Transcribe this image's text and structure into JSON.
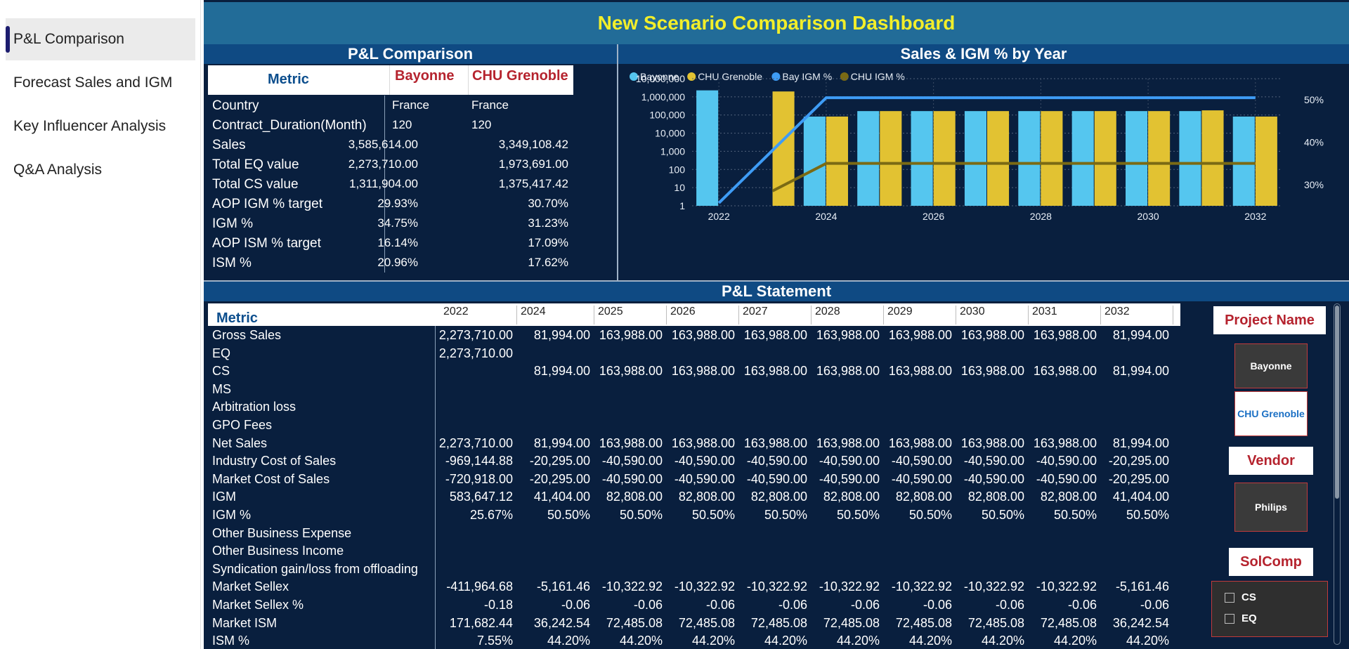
{
  "nav": {
    "items": [
      {
        "label": "P&L Comparison",
        "active": true
      },
      {
        "label": "Forecast Sales and IGM",
        "active": false
      },
      {
        "label": "Key Influencer Analysis",
        "active": false
      },
      {
        "label": "Q&A Analysis",
        "active": false
      }
    ]
  },
  "header": {
    "title": "New Scenario Comparison Dashboard"
  },
  "comparison": {
    "title": "P&L Comparison",
    "columns": [
      "Metric",
      "Bayonne",
      "CHU Grenoble"
    ],
    "rows": [
      {
        "metric": "Country",
        "a": "France",
        "b": "France"
      },
      {
        "metric": "Contract_Duration(Month)",
        "a": "120",
        "b": "120"
      },
      {
        "metric": "Sales",
        "a": "3,585,614.00",
        "b": "3,349,108.42"
      },
      {
        "metric": "Total EQ value",
        "a": "2,273,710.00",
        "b": "1,973,691.00"
      },
      {
        "metric": "Total CS value",
        "a": "1,311,904.00",
        "b": "1,375,417.42"
      },
      {
        "metric": "AOP IGM % target",
        "a": "29.93%",
        "b": "30.70%"
      },
      {
        "metric": "IGM %",
        "a": "34.75%",
        "b": "31.23%"
      },
      {
        "metric": "AOP ISM % target",
        "a": "16.14%",
        "b": "17.09%"
      },
      {
        "metric": "ISM %",
        "a": "20.96%",
        "b": "17.62%"
      }
    ]
  },
  "chart_data": {
    "type": "bar",
    "title": "Sales & IGM % by Year",
    "legend": [
      "Bayonne",
      "CHU Grenoble",
      "Bay IGM %",
      "CHU IGM %"
    ],
    "legend_position": "top-left",
    "colors": {
      "Bayonne": "#55c6ef",
      "CHU Grenoble": "#e2c232",
      "Bay IGM %": "#3e9cf5",
      "CHU IGM %": "#7a6a14"
    },
    "categories": [
      "2022",
      "2023",
      "2024",
      "2025",
      "2026",
      "2027",
      "2028",
      "2029",
      "2030",
      "2031",
      "2032"
    ],
    "x_tick_labels": [
      "2022",
      "2024",
      "2026",
      "2028",
      "2030",
      "2032"
    ],
    "y_scale": "log",
    "y_tick_labels": [
      "10,000,000",
      "1,000,000",
      "100,000",
      "10,000",
      "1,000",
      "100",
      "10",
      "1"
    ],
    "y2_tick_labels": [
      "50%",
      "40%",
      "30%"
    ],
    "ylim": [
      1,
      10000000
    ],
    "y2lim": [
      25,
      55
    ],
    "series": [
      {
        "name": "Bayonne",
        "type": "bar",
        "values": [
          2273710,
          null,
          81994,
          163988,
          163988,
          163988,
          163988,
          163988,
          163988,
          163988,
          81994
        ]
      },
      {
        "name": "CHU Grenoble",
        "type": "bar",
        "values": [
          null,
          1973691,
          81994,
          163988,
          163988,
          163988,
          163988,
          163988,
          163988,
          180000,
          81994
        ]
      },
      {
        "name": "Bay IGM %",
        "type": "line",
        "values": [
          25.67,
          null,
          50.5,
          50.5,
          50.5,
          50.5,
          50.5,
          50.5,
          50.5,
          50.5,
          50.5
        ]
      },
      {
        "name": "CHU IGM %",
        "type": "line",
        "values": [
          null,
          28.5,
          35.0,
          35.0,
          35.0,
          35.0,
          35.0,
          35.0,
          35.0,
          35.0,
          35.0
        ]
      }
    ],
    "grid": true
  },
  "statement": {
    "title": "P&L Statement",
    "metric_header": "Metric",
    "years": [
      "2022",
      "2024",
      "2025",
      "2026",
      "2027",
      "2028",
      "2029",
      "2030",
      "2031",
      "2032"
    ],
    "rows": [
      {
        "label": "Gross Sales",
        "values": [
          "2,273,710.00",
          "81,994.00",
          "163,988.00",
          "163,988.00",
          "163,988.00",
          "163,988.00",
          "163,988.00",
          "163,988.00",
          "163,988.00",
          "81,994.00"
        ]
      },
      {
        "label": "EQ",
        "values": [
          "2,273,710.00",
          "",
          "",
          "",
          "",
          "",
          "",
          "",
          "",
          ""
        ]
      },
      {
        "label": "CS",
        "values": [
          "",
          "81,994.00",
          "163,988.00",
          "163,988.00",
          "163,988.00",
          "163,988.00",
          "163,988.00",
          "163,988.00",
          "163,988.00",
          "81,994.00"
        ]
      },
      {
        "label": "MS",
        "values": [
          "",
          "",
          "",
          "",
          "",
          "",
          "",
          "",
          "",
          ""
        ]
      },
      {
        "label": "Arbitration loss",
        "values": [
          "",
          "",
          "",
          "",
          "",
          "",
          "",
          "",
          "",
          ""
        ]
      },
      {
        "label": "GPO Fees",
        "values": [
          "",
          "",
          "",
          "",
          "",
          "",
          "",
          "",
          "",
          ""
        ]
      },
      {
        "label": "Net Sales",
        "values": [
          "2,273,710.00",
          "81,994.00",
          "163,988.00",
          "163,988.00",
          "163,988.00",
          "163,988.00",
          "163,988.00",
          "163,988.00",
          "163,988.00",
          "81,994.00"
        ]
      },
      {
        "label": "Industry Cost of Sales",
        "values": [
          "-969,144.88",
          "-20,295.00",
          "-40,590.00",
          "-40,590.00",
          "-40,590.00",
          "-40,590.00",
          "-40,590.00",
          "-40,590.00",
          "-40,590.00",
          "-20,295.00"
        ]
      },
      {
        "label": "Market Cost of Sales",
        "values": [
          "-720,918.00",
          "-20,295.00",
          "-40,590.00",
          "-40,590.00",
          "-40,590.00",
          "-40,590.00",
          "-40,590.00",
          "-40,590.00",
          "-40,590.00",
          "-20,295.00"
        ]
      },
      {
        "label": "IGM",
        "values": [
          "583,647.12",
          "41,404.00",
          "82,808.00",
          "82,808.00",
          "82,808.00",
          "82,808.00",
          "82,808.00",
          "82,808.00",
          "82,808.00",
          "41,404.00"
        ]
      },
      {
        "label": "IGM %",
        "values": [
          "25.67%",
          "50.50%",
          "50.50%",
          "50.50%",
          "50.50%",
          "50.50%",
          "50.50%",
          "50.50%",
          "50.50%",
          "50.50%"
        ]
      },
      {
        "label": "Other Business Expense",
        "values": [
          "",
          "",
          "",
          "",
          "",
          "",
          "",
          "",
          "",
          ""
        ]
      },
      {
        "label": "Other Business Income",
        "values": [
          "",
          "",
          "",
          "",
          "",
          "",
          "",
          "",
          "",
          ""
        ]
      },
      {
        "label": "Syndication gain/loss from offloading",
        "values": [
          "",
          "",
          "",
          "",
          "",
          "",
          "",
          "",
          "",
          ""
        ]
      },
      {
        "label": "Market Sellex",
        "values": [
          "-411,964.68",
          "-5,161.46",
          "-10,322.92",
          "-10,322.92",
          "-10,322.92",
          "-10,322.92",
          "-10,322.92",
          "-10,322.92",
          "-10,322.92",
          "-5,161.46"
        ]
      },
      {
        "label": "Market Sellex %",
        "values": [
          "-0.18",
          "-0.06",
          "-0.06",
          "-0.06",
          "-0.06",
          "-0.06",
          "-0.06",
          "-0.06",
          "-0.06",
          "-0.06"
        ]
      },
      {
        "label": "Market ISM",
        "values": [
          "171,682.44",
          "36,242.54",
          "72,485.08",
          "72,485.08",
          "72,485.08",
          "72,485.08",
          "72,485.08",
          "72,485.08",
          "72,485.08",
          "36,242.54"
        ]
      },
      {
        "label": "ISM %",
        "values": [
          "7.55%",
          "44.20%",
          "44.20%",
          "44.20%",
          "44.20%",
          "44.20%",
          "44.20%",
          "44.20%",
          "44.20%",
          "44.20%"
        ]
      }
    ]
  },
  "slicers": {
    "project": {
      "title": "Project Name",
      "options": [
        {
          "label": "Bayonne",
          "selected": false
        },
        {
          "label": "CHU Grenoble",
          "selected": true
        }
      ]
    },
    "vendor": {
      "title": "Vendor",
      "options": [
        {
          "label": "Philips",
          "selected": false
        }
      ]
    },
    "solcomp": {
      "title": "SolComp",
      "options": [
        {
          "label": "CS",
          "checked": false
        },
        {
          "label": "EQ",
          "checked": false
        }
      ]
    }
  }
}
